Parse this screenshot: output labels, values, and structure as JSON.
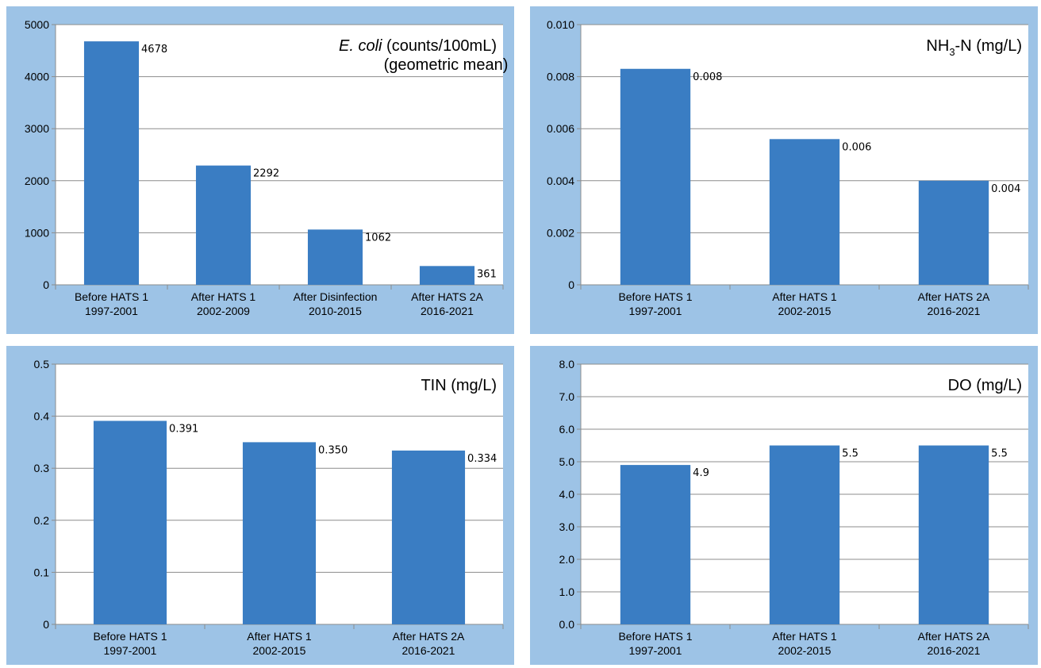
{
  "chart_data": [
    {
      "type": "bar",
      "title": "E. coli (counts/100mL)",
      "title_parts": {
        "italic": "E. coli",
        "rest": "(counts/100mL)"
      },
      "subtitle": "(geometric mean)",
      "categories": [
        "Before HATS 1",
        "After HATS 1",
        "After Disinfection",
        "After HATS 2A"
      ],
      "periods": [
        "1997-2001",
        "2002-2009",
        "2010-2015",
        "2016-2021"
      ],
      "values": [
        4678,
        2292,
        1062,
        361
      ],
      "data_labels": [
        "4678",
        "2292",
        "1062",
        "361"
      ],
      "yticks": [
        "0",
        "1000",
        "2000",
        "3000",
        "4000",
        "5000"
      ],
      "ylim": [
        0,
        5000
      ],
      "grid": true,
      "bar_color": "#3a7dc3"
    },
    {
      "type": "bar",
      "title": "NH3-N (mg/L)",
      "title_parts": {
        "pre": "NH",
        "sub": "3",
        "post": "-N  (mg/L)"
      },
      "categories": [
        "Before HATS 1",
        "After HATS 1",
        "After HATS 2A"
      ],
      "periods": [
        "1997-2001",
        "2002-2015",
        "2016-2021"
      ],
      "values": [
        0.0083,
        0.0056,
        0.004
      ],
      "data_labels": [
        "0.008",
        "0.006",
        "0.004"
      ],
      "yticks": [
        "0",
        "0.002",
        "0.004",
        "0.006",
        "0.008",
        "0.010"
      ],
      "ylim": [
        0,
        0.01
      ],
      "grid": true,
      "bar_color": "#3a7dc3"
    },
    {
      "type": "bar",
      "title": "TIN (mg/L)",
      "categories": [
        "Before HATS 1",
        "After HATS 1",
        "After HATS 2A"
      ],
      "periods": [
        "1997-2001",
        "2002-2015",
        "2016-2021"
      ],
      "values": [
        0.391,
        0.35,
        0.334
      ],
      "data_labels": [
        "0.391",
        "0.350",
        "0.334"
      ],
      "yticks": [
        "0",
        "0.1",
        "0.2",
        "0.3",
        "0.4",
        "0.5"
      ],
      "ylim": [
        0,
        0.5
      ],
      "grid": true,
      "bar_color": "#3a7dc3"
    },
    {
      "type": "bar",
      "title": "DO (mg/L)",
      "categories": [
        "Before HATS 1",
        "After HATS 1",
        "After HATS 2A"
      ],
      "periods": [
        "1997-2001",
        "2002-2015",
        "2016-2021"
      ],
      "values": [
        4.9,
        5.5,
        5.5
      ],
      "data_labels": [
        "4.9",
        "5.5",
        "5.5"
      ],
      "yticks": [
        "0.0",
        "1.0",
        "2.0",
        "3.0",
        "4.0",
        "5.0",
        "6.0",
        "7.0",
        "8.0"
      ],
      "ylim": [
        0,
        8
      ],
      "grid": true,
      "bar_color": "#3a7dc3"
    }
  ]
}
